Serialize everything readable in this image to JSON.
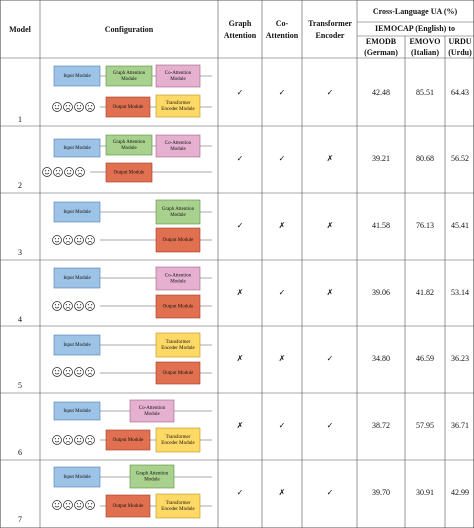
{
  "table": {
    "header": {
      "model": "Model",
      "configuration": "Configuration",
      "graph_attention": [
        "Graph",
        "Attention"
      ],
      "co_attention": [
        "Co-",
        "Attention"
      ],
      "transformer_encoder": [
        "Transformer",
        "Encoder"
      ],
      "group": "Cross-Language UA (%)",
      "subgroup": "IEMOCAP (English) to",
      "emodb": [
        "EMODB",
        "(German)"
      ],
      "emovo": [
        "EMOVO",
        "(Italian)"
      ],
      "urdu": [
        "URDU",
        "(Urdu)"
      ]
    },
    "rows": [
      {
        "model": "1",
        "modules": [
          [
            "Input Module"
          ],
          [
            "Graph Attention",
            "Module"
          ],
          [
            "Co-Attention",
            "Module"
          ],
          [
            "Output Module"
          ],
          [
            "Transformer",
            "Encoder Module"
          ]
        ],
        "graph_attention": "✓",
        "co_attention": "✓",
        "transformer_encoder": "✓",
        "emodb": "42.48",
        "emovo": "85.51",
        "urdu": "64.43"
      },
      {
        "model": "2",
        "modules": [
          [
            "Input Module"
          ],
          [
            "Graph Attention",
            "Module"
          ],
          [
            "Co-Attention",
            "Module"
          ],
          [
            "Output Module"
          ]
        ],
        "graph_attention": "✓",
        "co_attention": "✓",
        "transformer_encoder": "✗",
        "emodb": "39.21",
        "emovo": "80.68",
        "urdu": "56.52"
      },
      {
        "model": "3",
        "modules": [
          [
            "Input Module"
          ],
          [
            "Graph Attention",
            "Module"
          ],
          [
            "Output Module"
          ]
        ],
        "graph_attention": "✓",
        "co_attention": "✗",
        "transformer_encoder": "✗",
        "emodb": "41.58",
        "emovo": "76.13",
        "urdu": "45.41"
      },
      {
        "model": "4",
        "modules": [
          [
            "Input Module"
          ],
          [
            "Co-Attention",
            "Module"
          ],
          [
            "Output Module"
          ]
        ],
        "graph_attention": "✗",
        "co_attention": "✓",
        "transformer_encoder": "✗",
        "emodb": "39.06",
        "emovo": "41.82",
        "urdu": "53.14"
      },
      {
        "model": "5",
        "modules": [
          [
            "Input Module"
          ],
          [
            "Transformer",
            "Encoder Module"
          ],
          [
            "Output Module"
          ]
        ],
        "graph_attention": "✗",
        "co_attention": "✗",
        "transformer_encoder": "✓",
        "emodb": "34.80",
        "emovo": "46.59",
        "urdu": "36.23"
      },
      {
        "model": "6",
        "modules": [
          [
            "Input Module"
          ],
          [
            "Co-Attention",
            "Module"
          ],
          [
            "Output Module"
          ],
          [
            "Transformer",
            "Encoder Module"
          ]
        ],
        "graph_attention": "✗",
        "co_attention": "✓",
        "transformer_encoder": "✓",
        "emodb": "38.72",
        "emovo": "57.95",
        "urdu": "36.71"
      },
      {
        "model": "7",
        "modules": [
          [
            "Input Module"
          ],
          [
            "Graph Attention",
            "Module"
          ],
          [
            "Output Module"
          ],
          [
            "Transformer",
            "Encoder Module"
          ]
        ],
        "graph_attention": "✓",
        "co_attention": "✗",
        "transformer_encoder": "✓",
        "emodb": "39.70",
        "emovo": "30.91",
        "urdu": "42.99"
      }
    ]
  }
}
